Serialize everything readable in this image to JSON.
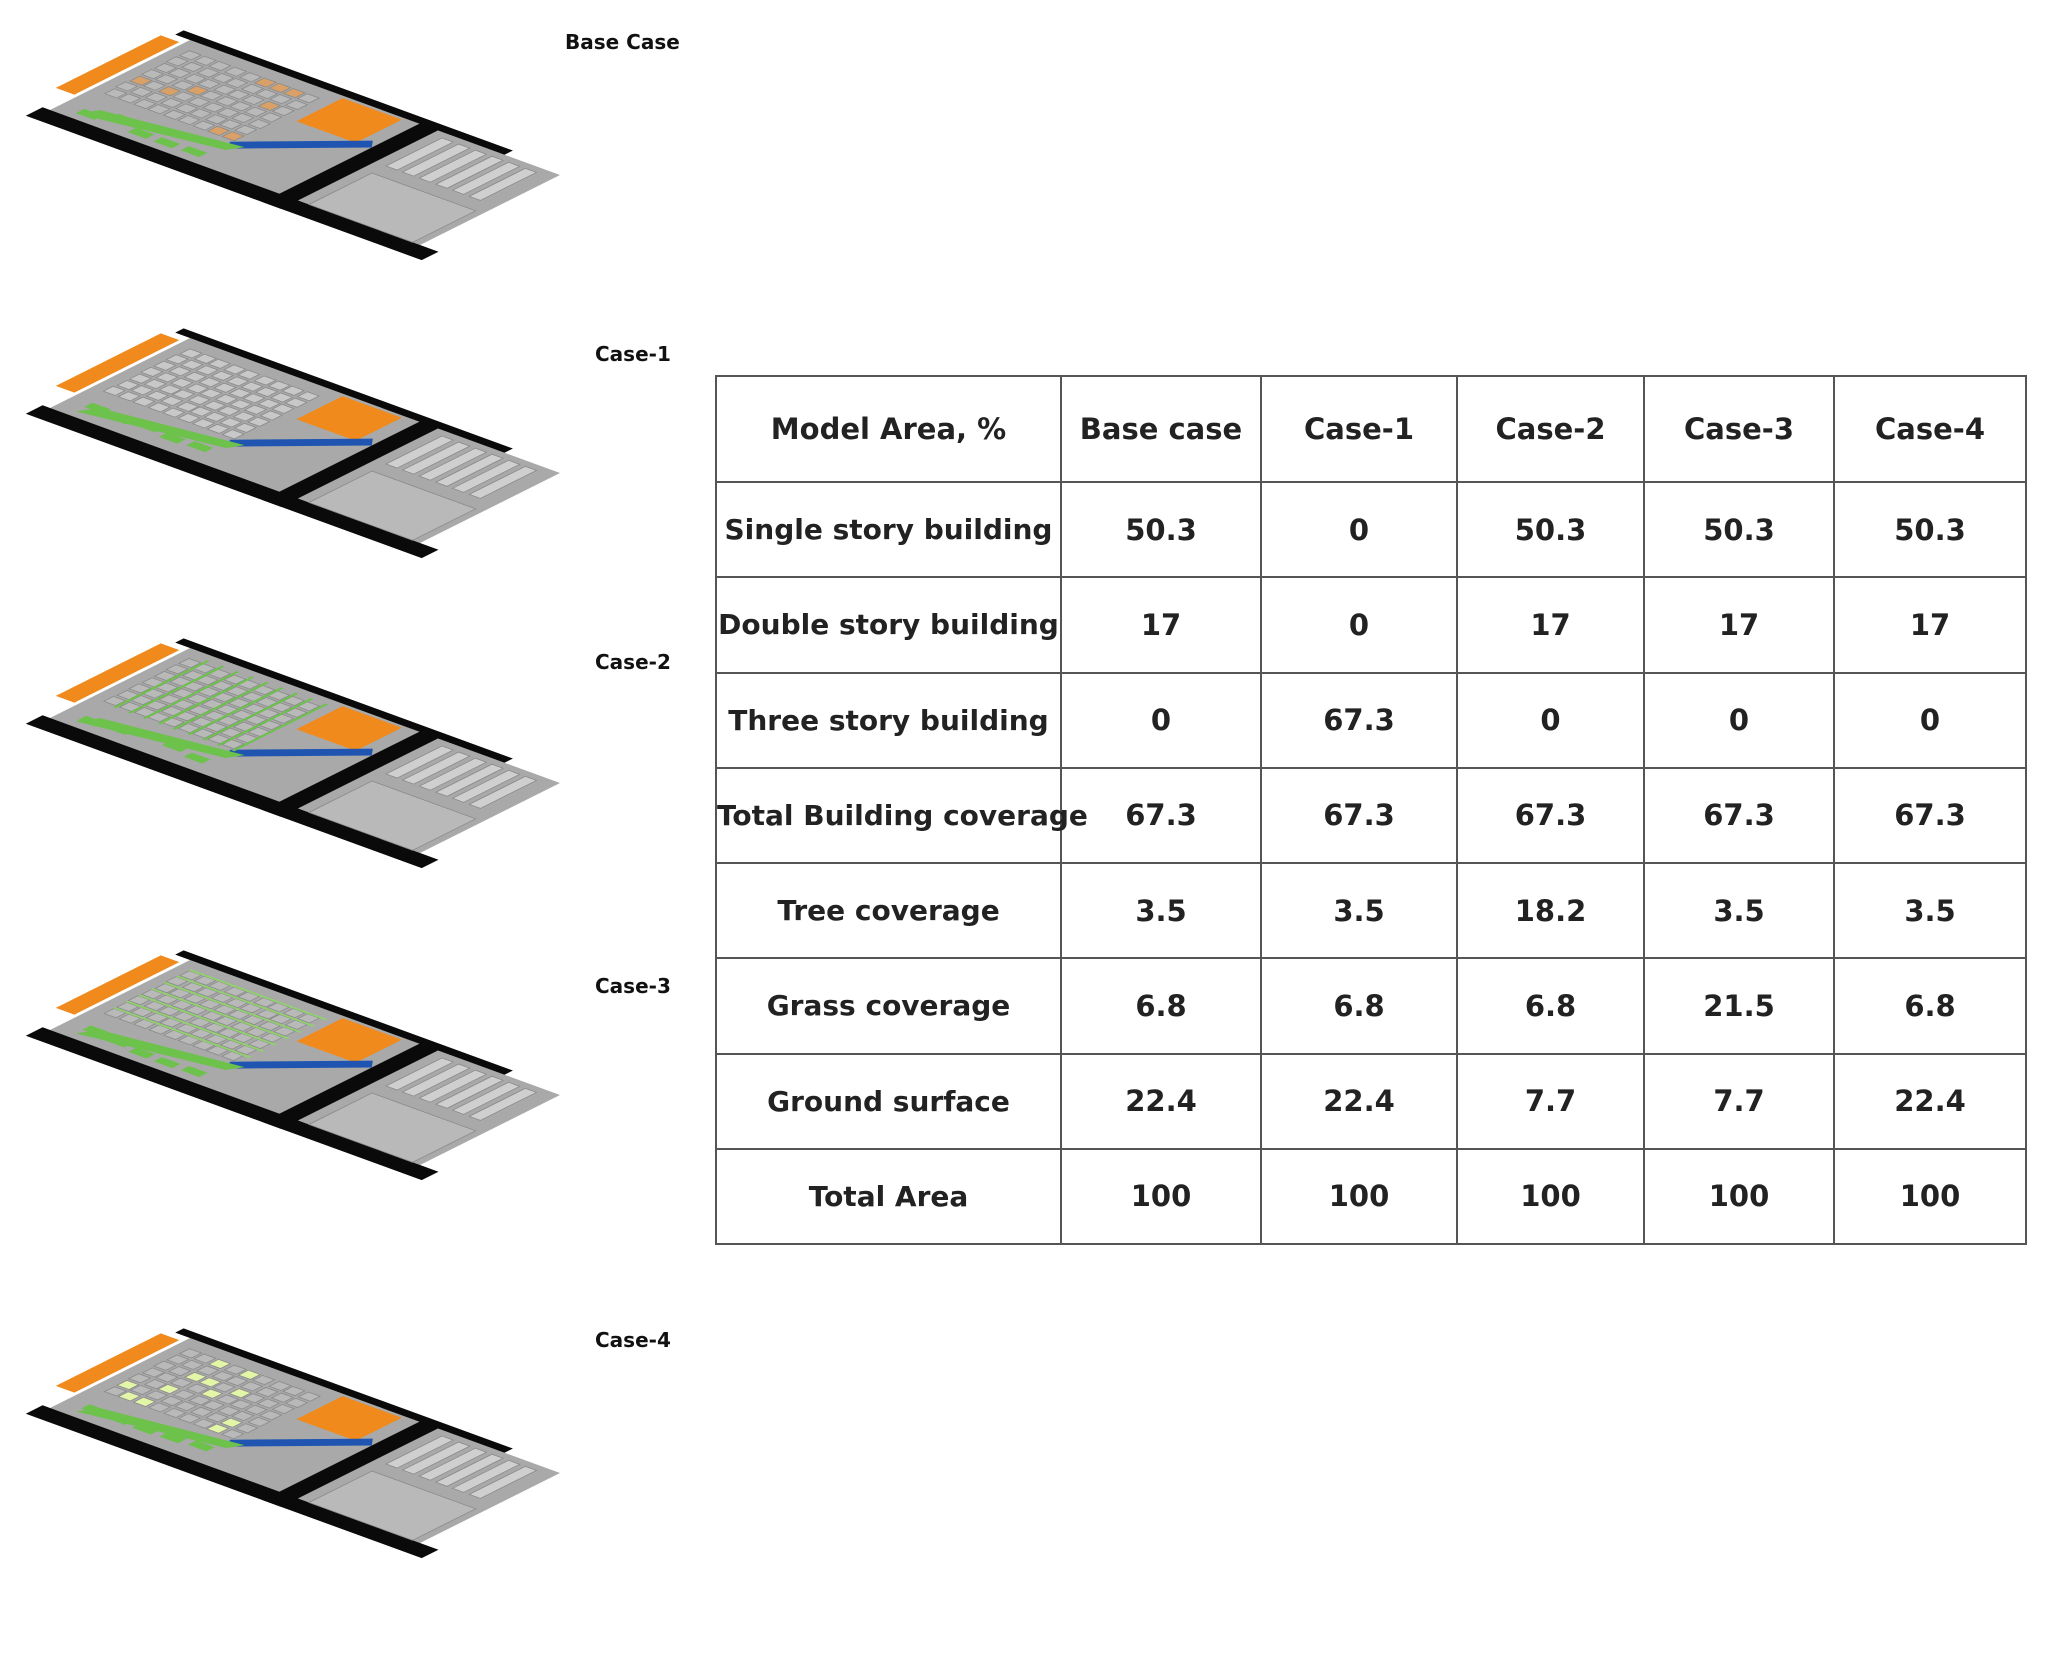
{
  "models": [
    {
      "label": "Base Case",
      "variant": "base"
    },
    {
      "label": "Case-1",
      "variant": "case1"
    },
    {
      "label": "Case-2",
      "variant": "case2"
    },
    {
      "label": "Case-3",
      "variant": "case3"
    },
    {
      "label": "Case-4",
      "variant": "case4"
    }
  ],
  "colors": {
    "road": "#0a0a0a",
    "building": "#b9b9b9",
    "building_outline": "#8a8a8a",
    "orange": "#f08a1c",
    "tree": "#6cc24a",
    "water": "#1f55b0",
    "light_green": "#e3f5a6"
  },
  "table": {
    "headers": [
      "Model Area, %",
      "Base case",
      "Case-1",
      "Case-2",
      "Case-3",
      "Case-4"
    ],
    "rows": [
      {
        "label": "Single story building",
        "values": [
          "50.3",
          "0",
          "50.3",
          "50.3",
          "50.3"
        ]
      },
      {
        "label": "Double story building",
        "values": [
          "17",
          "0",
          "17",
          "17",
          "17"
        ]
      },
      {
        "label": "Three story building",
        "values": [
          "0",
          "67.3",
          "0",
          "0",
          "0"
        ]
      },
      {
        "label": "Total Building coverage",
        "values": [
          "67.3",
          "67.3",
          "67.3",
          "67.3",
          "67.3"
        ]
      },
      {
        "label": "Tree coverage",
        "values": [
          "3.5",
          "3.5",
          "18.2",
          "3.5",
          "3.5"
        ]
      },
      {
        "label": "Grass coverage",
        "values": [
          "6.8",
          "6.8",
          "6.8",
          "21.5",
          "6.8"
        ]
      },
      {
        "label": "Ground surface",
        "values": [
          "22.4",
          "22.4",
          "7.7",
          "7.7",
          "22.4"
        ]
      },
      {
        "label": "Total Area",
        "values": [
          "100",
          "100",
          "100",
          "100",
          "100"
        ]
      }
    ]
  }
}
